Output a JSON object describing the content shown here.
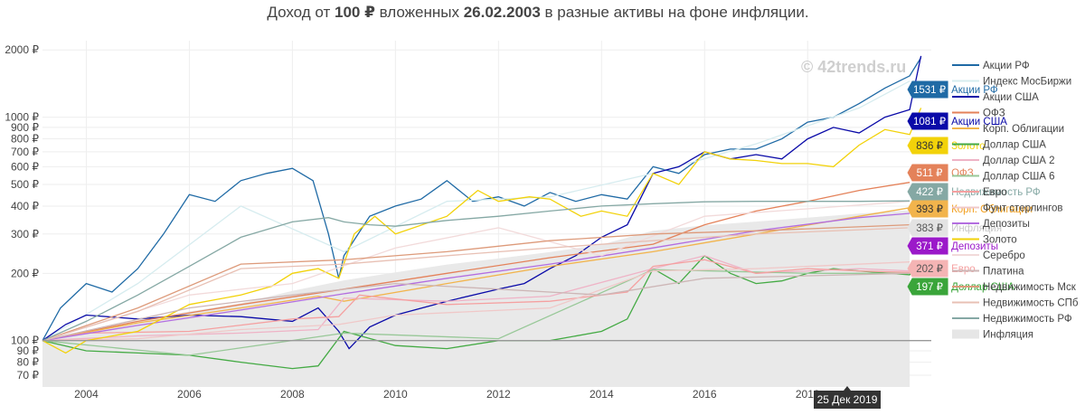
{
  "title": {
    "prefix": "Доход от ",
    "amount": "100 ₽",
    "middle": " вложенных ",
    "date": "26.02.2003",
    "suffix": " в разные активы на фоне инфляции."
  },
  "watermark": "© 42trends.ru",
  "hover_label": "25 Дек 2019",
  "chart_data": {
    "type": "line",
    "y_scale": "log",
    "ylim": [
      62,
      2200
    ],
    "xlim": [
      2003.15,
      2020.4
    ],
    "x_ticks": [
      {
        "value": 2004,
        "label": "2004"
      },
      {
        "value": 2006,
        "label": "2006"
      },
      {
        "value": 2008,
        "label": "2008"
      },
      {
        "value": 2010,
        "label": "2010"
      },
      {
        "value": 2012,
        "label": "2012"
      },
      {
        "value": 2014,
        "label": "2014"
      },
      {
        "value": 2016,
        "label": "2016"
      },
      {
        "value": 2018,
        "label": "2018"
      }
    ],
    "y_ticks": [
      {
        "value": 70,
        "label": "70 ₽"
      },
      {
        "value": 80,
        "label": "80 ₽"
      },
      {
        "value": 90,
        "label": "90 ₽"
      },
      {
        "value": 100,
        "label": "100 ₽"
      },
      {
        "value": 200,
        "label": "200 ₽"
      },
      {
        "value": 300,
        "label": "300 ₽"
      },
      {
        "value": 400,
        "label": "400 ₽"
      },
      {
        "value": 500,
        "label": "500 ₽"
      },
      {
        "value": 600,
        "label": "600 ₽"
      },
      {
        "value": 700,
        "label": "700 ₽"
      },
      {
        "value": 800,
        "label": "800 ₽"
      },
      {
        "value": 900,
        "label": "900 ₽"
      },
      {
        "value": 1000,
        "label": "1000 ₽"
      },
      {
        "value": 2000,
        "label": "2000 ₽"
      }
    ],
    "reference_line": 100,
    "inflation_area": {
      "name": "Инфляция",
      "color": "#e9e9e9",
      "x": [
        2003.15,
        2004,
        2005,
        2006,
        2007,
        2008,
        2009,
        2010,
        2011,
        2012,
        2013,
        2014,
        2015,
        2016,
        2017,
        2018,
        2019,
        2019.98
      ],
      "values": [
        100,
        111,
        123,
        135,
        147,
        167,
        186,
        202,
        219,
        233,
        249,
        269,
        310,
        328,
        341,
        355,
        370,
        383
      ]
    },
    "series": [
      {
        "name": "Акции РФ",
        "color": "#1f6aa5",
        "x": [
          2003.15,
          2003.5,
          2004,
          2004.5,
          2005,
          2005.5,
          2006,
          2006.5,
          2007,
          2007.5,
          2008,
          2008.4,
          2008.7,
          2008.9,
          2009,
          2009.5,
          2010,
          2010.5,
          2011,
          2011.5,
          2012,
          2012.5,
          2013,
          2013.5,
          2014,
          2014.5,
          2015,
          2015.5,
          2016,
          2016.5,
          2017,
          2017.5,
          2018,
          2018.5,
          2019,
          2019.5,
          2019.98,
          2020.2
        ],
        "values": [
          100,
          140,
          180,
          165,
          210,
          300,
          450,
          420,
          520,
          560,
          590,
          520,
          300,
          190,
          240,
          360,
          400,
          430,
          520,
          420,
          440,
          400,
          460,
          420,
          450,
          430,
          600,
          560,
          680,
          720,
          720,
          800,
          950,
          1000,
          1150,
          1350,
          1531,
          1850
        ]
      },
      {
        "name": "Индекс МосБиржи",
        "color": "#d6ecef",
        "x": [
          2003.15,
          2005,
          2007,
          2009,
          2011,
          2013,
          2015,
          2017,
          2019,
          2019.98
        ],
        "values": [
          100,
          180,
          400,
          250,
          420,
          440,
          560,
          760,
          1100,
          1450
        ]
      },
      {
        "name": "Акции США",
        "color": "#0a0aa8",
        "x": [
          2003.15,
          2003.6,
          2004,
          2005,
          2006,
          2007,
          2008,
          2008.5,
          2008.9,
          2009.1,
          2009.5,
          2010,
          2011,
          2012,
          2012.5,
          2013,
          2013.5,
          2014,
          2014.5,
          2015,
          2015.5,
          2016,
          2016.5,
          2017,
          2017.5,
          2018,
          2018.5,
          2019,
          2019.5,
          2019.98,
          2020.2
        ],
        "values": [
          100,
          118,
          130,
          125,
          130,
          128,
          122,
          140,
          110,
          92,
          115,
          130,
          150,
          170,
          180,
          210,
          240,
          290,
          330,
          560,
          600,
          700,
          650,
          680,
          650,
          800,
          900,
          850,
          1000,
          1081,
          1880
        ]
      },
      {
        "name": "ОФЗ",
        "color": "#e4825a",
        "x": [
          2003.15,
          2005,
          2007,
          2009,
          2011,
          2013,
          2015,
          2016,
          2017,
          2018,
          2019,
          2019.98
        ],
        "values": [
          100,
          122,
          145,
          170,
          200,
          235,
          270,
          330,
          380,
          420,
          470,
          511
        ]
      },
      {
        "name": "Корп. Облигации",
        "color": "#f2b44c",
        "x": [
          2003.15,
          2005,
          2007,
          2008.5,
          2009,
          2011,
          2013,
          2015,
          2017,
          2019,
          2019.98
        ],
        "values": [
          100,
          120,
          140,
          158,
          150,
          180,
          215,
          250,
          300,
          360,
          393
        ]
      },
      {
        "name": "Доллар США",
        "color": "#44aa44",
        "x": [
          2003.15,
          2004,
          2005,
          2006,
          2007,
          2008,
          2008.5,
          2009,
          2010,
          2011,
          2012,
          2013,
          2014,
          2014.5,
          2015,
          2015.5,
          2016,
          2016.5,
          2017,
          2017.5,
          2018,
          2018.5,
          2019,
          2019.98,
          2020.2
        ],
        "values": [
          100,
          90,
          88,
          86,
          80,
          75,
          77,
          110,
          95,
          92,
          100,
          100,
          110,
          125,
          210,
          180,
          240,
          200,
          180,
          185,
          200,
          210,
          205,
          197,
          228
        ]
      },
      {
        "name": "Доллар США 2",
        "color": "#efb3c6",
        "x": [
          2003.15,
          2005,
          2007,
          2008.5,
          2009,
          2011,
          2013,
          2015,
          2016,
          2017,
          2019,
          2019.98
        ],
        "values": [
          100,
          105,
          108,
          112,
          155,
          150,
          158,
          210,
          240,
          200,
          210,
          205
        ]
      },
      {
        "name": "Доллар США 6",
        "color": "#98c898",
        "x": [
          2003.15,
          2006,
          2009,
          2012,
          2015,
          2018,
          2019.98
        ],
        "values": [
          100,
          86,
          108,
          102,
          208,
          200,
          200
        ]
      },
      {
        "name": "Евро",
        "color": "#f5a0a0",
        "x": [
          2003.15,
          2004,
          2006,
          2008,
          2008.9,
          2009.3,
          2011,
          2013,
          2014.5,
          2015,
          2016,
          2017,
          2018,
          2019,
          2019.98
        ],
        "values": [
          100,
          108,
          110,
          125,
          128,
          160,
          145,
          150,
          165,
          215,
          230,
          200,
          210,
          205,
          202
        ]
      },
      {
        "name": "Фунт стерлингов",
        "color": "#f0c8c8",
        "x": [
          2003.15,
          2005,
          2007,
          2008.9,
          2010,
          2013,
          2015,
          2017,
          2019.98
        ],
        "values": [
          100,
          102,
          112,
          118,
          130,
          140,
          205,
          210,
          225
        ]
      },
      {
        "name": "Депозиты",
        "color": "#b36ee0",
        "x": [
          2003.15,
          2005,
          2007,
          2009,
          2011,
          2013,
          2015,
          2017,
          2019,
          2019.98
        ],
        "values": [
          100,
          117,
          137,
          162,
          190,
          220,
          260,
          310,
          355,
          371
        ]
      },
      {
        "name": "Золото",
        "color": "#f2d20a",
        "x": [
          2003.15,
          2003.6,
          2004,
          2005,
          2006,
          2007,
          2007.6,
          2008,
          2008.5,
          2008.9,
          2009.2,
          2009.6,
          2010,
          2011,
          2011.6,
          2012,
          2012.6,
          2013,
          2013.6,
          2014,
          2014.5,
          2015,
          2015.5,
          2016,
          2016.5,
          2017,
          2017.5,
          2018,
          2018.5,
          2019,
          2019.5,
          2019.98,
          2020.2
        ],
        "values": [
          100,
          88,
          100,
          110,
          145,
          160,
          175,
          200,
          210,
          190,
          300,
          360,
          300,
          360,
          470,
          420,
          440,
          430,
          360,
          380,
          360,
          560,
          500,
          700,
          650,
          640,
          620,
          620,
          600,
          750,
          880,
          836,
          1100
        ]
      },
      {
        "name": "Серебро",
        "color": "#f2dada",
        "x": [
          2003.15,
          2006,
          2008,
          2010,
          2012,
          2014,
          2016,
          2019.98
        ],
        "values": [
          100,
          160,
          180,
          260,
          320,
          240,
          360,
          420
        ]
      },
      {
        "name": "Платина",
        "color": "#cdb6b6",
        "x": [
          2003.15,
          2006,
          2008,
          2010,
          2012,
          2014,
          2016,
          2019.98
        ],
        "values": [
          100,
          140,
          160,
          180,
          170,
          160,
          190,
          200
        ]
      },
      {
        "name": "Недвижимость Мск",
        "color": "#dd9a7a",
        "x": [
          2003.15,
          2005,
          2007,
          2009,
          2011,
          2013,
          2015,
          2017,
          2019.98
        ],
        "values": [
          100,
          140,
          220,
          230,
          250,
          280,
          300,
          310,
          330
        ]
      },
      {
        "name": "Недвижимость СПб",
        "color": "#e8c0b4",
        "x": [
          2003.15,
          2005,
          2007,
          2009,
          2011,
          2013,
          2015,
          2017,
          2019.98
        ],
        "values": [
          100,
          135,
          210,
          220,
          240,
          260,
          280,
          300,
          320
        ]
      },
      {
        "name": "Недвижимость РФ",
        "color": "#85a8a4",
        "x": [
          2003.15,
          2004,
          2005,
          2006,
          2007,
          2008,
          2008.7,
          2009,
          2009.5,
          2010,
          2011,
          2012,
          2013,
          2014,
          2015,
          2016,
          2017,
          2018,
          2019,
          2019.98
        ],
        "values": [
          100,
          122,
          160,
          215,
          290,
          340,
          355,
          340,
          330,
          325,
          345,
          360,
          380,
          400,
          410,
          418,
          420,
          420,
          420,
          422
        ]
      }
    ],
    "end_labels": [
      {
        "value_text": "1531 ₽",
        "name": "Акции РФ",
        "color": "#1f6aa5",
        "text_color": "#ffffff",
        "name_color": "#1f6aa5"
      },
      {
        "value_text": "1081 ₽",
        "name": "Акции США",
        "color": "#0a0aa8",
        "text_color": "#ffffff",
        "name_color": "#0a0aa8"
      },
      {
        "value_text": "836 ₽",
        "name": "Золото",
        "color": "#f2d20a",
        "text_color": "#333333",
        "name_color": "#f2d20a"
      },
      {
        "value_text": "511 ₽",
        "name": "ОФЗ",
        "color": "#e4825a",
        "text_color": "#ffffff",
        "name_color": "#e4825a"
      },
      {
        "value_text": "422 ₽",
        "name": "Недвижимость РФ",
        "color": "#85a8a4",
        "text_color": "#ffffff",
        "name_color": "#85a8a4"
      },
      {
        "value_text": "393 ₽",
        "name": "Корп. Облигации",
        "color": "#f2b44c",
        "text_color": "#333333",
        "name_color": "#f2a020"
      },
      {
        "value_text": "383 ₽",
        "name": "Инфляция",
        "color": "#e3e3e3",
        "text_color": "#555555",
        "name_color": "#c9c9c9"
      },
      {
        "value_text": "371 ₽",
        "name": "Депозиты",
        "color": "#9b19c9",
        "text_color": "#ffffff",
        "name_color": "#9b19c9"
      },
      {
        "value_text": "202 ₽",
        "name": "Евро",
        "color": "#f5b4b4",
        "text_color": "#555555",
        "name_color": "#f5a0a0"
      },
      {
        "value_text": "197 ₽",
        "name": "Доллар США",
        "color": "#3aa53a",
        "text_color": "#ffffff",
        "name_color": "#3aa53a"
      }
    ],
    "legend": [
      {
        "label": "Акции РФ",
        "color": "#1f6aa5",
        "kind": "line"
      },
      {
        "label": "Индекс МосБиржи",
        "color": "#d6ecef",
        "kind": "line"
      },
      {
        "label": "Акции США",
        "color": "#0a0aa8",
        "kind": "line"
      },
      {
        "label": "ОФЗ",
        "color": "#e4825a",
        "kind": "line"
      },
      {
        "label": "Корп. Облигации",
        "color": "#f2b44c",
        "kind": "line"
      },
      {
        "label": "Доллар США",
        "color": "#44aa44",
        "kind": "line"
      },
      {
        "label": "Доллар США 2",
        "color": "#efb3c6",
        "kind": "line"
      },
      {
        "label": "Доллар США 6",
        "color": "#98c898",
        "kind": "line"
      },
      {
        "label": "Евро",
        "color": "#f5a0a0",
        "kind": "line"
      },
      {
        "label": "Фунт стерлингов",
        "color": "#f0c8c8",
        "kind": "line"
      },
      {
        "label": "Депозиты",
        "color": "#b36ee0",
        "kind": "line"
      },
      {
        "label": "Золото",
        "color": "#f2d20a",
        "kind": "line"
      },
      {
        "label": "Серебро",
        "color": "#f2dada",
        "kind": "line"
      },
      {
        "label": "Платина",
        "color": "#cdb6b6",
        "kind": "line"
      },
      {
        "label": "Недвижимость Мск",
        "color": "#dd9a7a",
        "kind": "line"
      },
      {
        "label": "Недвижимость СПб",
        "color": "#e8c0b4",
        "kind": "line"
      },
      {
        "label": "Недвижимость РФ",
        "color": "#85a8a4",
        "kind": "line"
      },
      {
        "label": "Инфляция",
        "color": "#e6e6e6",
        "kind": "area"
      }
    ]
  }
}
